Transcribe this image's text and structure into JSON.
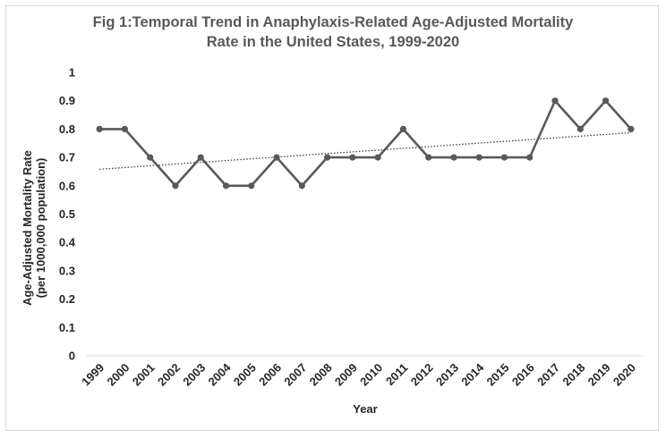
{
  "chart_data": {
    "type": "line",
    "title_lines": [
      "Fig 1:Temporal Trend in Anaphylaxis-Related Age-Adjusted Mortality",
      "Rate in the United States, 1999-2020"
    ],
    "xlabel": "Year",
    "ylabel_lines": [
      "Age-Adjusted Mortality Rate",
      "(per 1000,000 population)"
    ],
    "categories": [
      "1999",
      "2000",
      "2001",
      "2002",
      "2003",
      "2004",
      "2005",
      "2006",
      "2007",
      "2008",
      "2009",
      "2010",
      "2011",
      "2012",
      "2013",
      "2014",
      "2015",
      "2016",
      "2017",
      "2018",
      "2019",
      "2020"
    ],
    "series": [
      {
        "values": [
          0.8,
          0.8,
          0.7,
          0.6,
          0.7,
          0.6,
          0.6,
          0.7,
          0.6,
          0.7,
          0.7,
          0.7,
          0.8,
          0.7,
          0.7,
          0.7,
          0.7,
          0.7,
          0.9,
          0.8,
          0.9,
          0.8
        ],
        "color": "#595959"
      }
    ],
    "trendline": {
      "type": "linear",
      "style": "dotted",
      "color": "#404040"
    },
    "y_ticks": [
      "0",
      "0.1",
      "0.2",
      "0.3",
      "0.4",
      "0.5",
      "0.6",
      "0.7",
      "0.8",
      "0.9",
      "1"
    ],
    "ylim": [
      0,
      1
    ],
    "grid": false,
    "legend": "none"
  }
}
